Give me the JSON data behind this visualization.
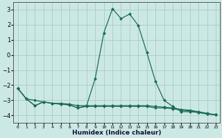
{
  "xlabel": "Humidex (Indice chaleur)",
  "x": [
    0,
    1,
    2,
    3,
    4,
    5,
    6,
    7,
    8,
    9,
    10,
    11,
    12,
    13,
    14,
    15,
    16,
    17,
    18,
    19,
    20,
    21,
    22,
    23
  ],
  "line1": [
    -2.2,
    -2.9,
    -3.35,
    -3.1,
    -3.2,
    -3.25,
    -3.3,
    -3.5,
    -3.35,
    -1.55,
    1.45,
    3.05,
    2.4,
    2.7,
    1.95,
    0.15,
    -1.75,
    -3.0,
    -3.4,
    -3.75,
    -3.75,
    -3.8,
    -3.9,
    -3.95
  ],
  "line2": [
    -2.2,
    -2.9,
    -3.0,
    -3.1,
    -3.2,
    -3.2,
    -3.25,
    -3.35,
    -3.35,
    -3.35,
    -3.35,
    -3.35,
    -3.35,
    -3.35,
    -3.35,
    -3.35,
    -3.4,
    -3.45,
    -3.5,
    -3.6,
    -3.65,
    -3.75,
    -3.85,
    -3.95
  ],
  "line3": [
    -2.2,
    -2.9,
    -3.35,
    -3.1,
    -3.2,
    -3.25,
    -3.3,
    -3.5,
    -3.4,
    -3.4,
    -3.4,
    -3.4,
    -3.4,
    -3.4,
    -3.4,
    -3.4,
    -3.5,
    -3.5,
    -3.55,
    -3.65,
    -3.7,
    -3.8,
    -3.9,
    -3.95
  ],
  "line_color": "#1a6b5a",
  "background_color": "#cce8e5",
  "grid_color": "#aacfcc",
  "ylim": [
    -4.5,
    3.5
  ],
  "yticks": [
    -4,
    -3,
    -2,
    -1,
    0,
    1,
    2,
    3
  ],
  "xlim": [
    -0.5,
    23.5
  ]
}
